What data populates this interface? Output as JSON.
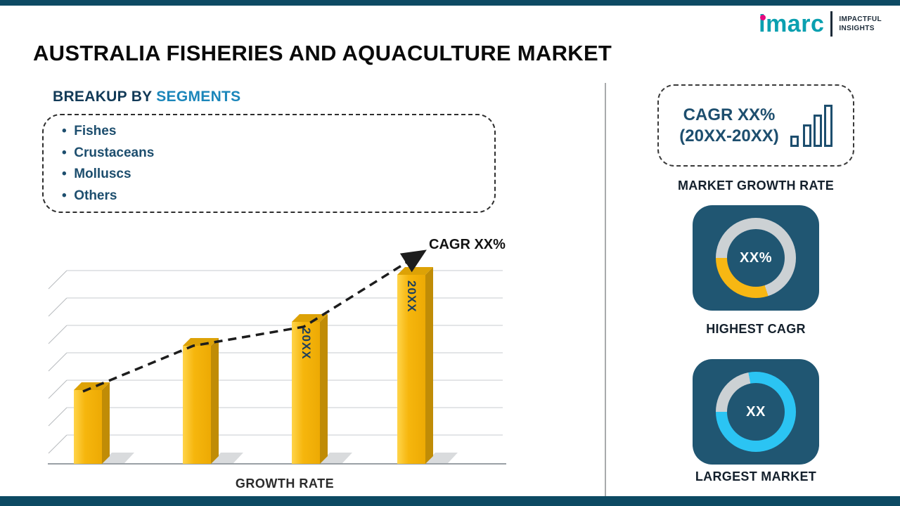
{
  "page": {
    "title": "AUSTRALIA FISHERIES AND AQUACULTURE MARKET"
  },
  "logo": {
    "brand": "imarc",
    "tagline_line1": "IMPACTFUL",
    "tagline_line2": "INSIGHTS"
  },
  "segments": {
    "heading_prefix": "BREAKUP BY ",
    "heading_highlight": "SEGMENTS",
    "items": [
      "Fishes",
      "Crustaceans",
      "Molluscs",
      "Others"
    ]
  },
  "chart_data": {
    "type": "bar",
    "title": "",
    "categories": [
      "",
      "",
      "20XX",
      "20XX"
    ],
    "values": [
      25,
      40,
      48,
      64
    ],
    "xlabel": "GROWTH RATE",
    "ylabel": "",
    "annotation": "CAGR XX%",
    "trend": "rising-dashed-arrow",
    "gridlines": true,
    "bar_color": "#f6b60d"
  },
  "right_panel": {
    "cagr_box": {
      "line1": "CAGR XX%",
      "line2": "(20XX-20XX)"
    },
    "market_growth_label": "MARKET GROWTH RATE",
    "highest_cagr": {
      "value": "XX%",
      "label": "HIGHEST CAGR",
      "ring_percent": 30,
      "ring_color": "#f7b713"
    },
    "largest_market": {
      "value": "XX",
      "label": "LARGEST MARKET",
      "ring_percent": 78,
      "ring_color": "#2bc4f3"
    }
  },
  "icons": {
    "growth_bars": "bar-chart-icon",
    "trend_arrow": "dashed-trend-arrow-icon",
    "highest_cagr_ring": "donut-ring-icon",
    "largest_market_ring": "donut-ring-icon"
  },
  "colors": {
    "navy": "#1d4e6e",
    "teal_accent": "#1b86ba",
    "brand_teal": "#0aa0b0",
    "brand_pink": "#e5097f",
    "gold": "#f7b713",
    "cyan": "#2bc4f3",
    "card_bg": "#205672",
    "ring_gray": "#ccd1d4",
    "strip": "#0d4a63"
  }
}
